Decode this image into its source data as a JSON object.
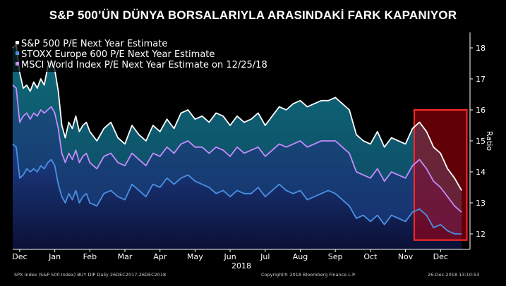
{
  "headline": "S&P 500’ÜN DÜNYA BORSALARIYLA ARASINDAKİ FARK KAPANIYOR",
  "footer": {
    "left": "SPX Index (S&P 500 Index) BUY DIP  Daily 26DEC2017-26DEC2018",
    "center": "Copyright® 2018 Bloomberg Finance L.P.",
    "right": "26-Dec-2018 13:10:53"
  },
  "colors": {
    "background": "#000000",
    "sp500": "#ffffff",
    "stoxx": "#4a90e2",
    "msci": "#c58cff",
    "highlight_fill": "#b3000f",
    "highlight_stroke": "#ff2a2a"
  },
  "chart_data": {
    "type": "line",
    "title": "",
    "xlabel": "2018",
    "ylabel": "Ratio",
    "ylim": [
      11.5,
      18.5
    ],
    "yticks": [
      12,
      13,
      14,
      15,
      16,
      17,
      18
    ],
    "xticks": [
      "Dec",
      "Jan",
      "Feb",
      "Mar",
      "Apr",
      "May",
      "Jun",
      "Jul",
      "Aug",
      "Sep",
      "Oct",
      "Nov",
      "Dec"
    ],
    "x_tick_positions": [
      -0.8,
      0.2,
      1.2,
      2.2,
      3.2,
      4.2,
      5.2,
      6.2,
      7.2,
      8.2,
      9.2,
      10.2,
      11.2
    ],
    "x_range": [
      -1.0,
      12.0
    ],
    "legend_position": "top-left",
    "series": [
      {
        "name": "S&P 500 P/E Next Year Estimate",
        "color": "#ffffff",
        "x": [
          -1.0,
          -0.9,
          -0.8,
          -0.7,
          -0.6,
          -0.5,
          -0.4,
          -0.3,
          -0.2,
          -0.1,
          0.0,
          0.1,
          0.2,
          0.3,
          0.4,
          0.5,
          0.6,
          0.7,
          0.8,
          0.9,
          1.0,
          1.1,
          1.2,
          1.4,
          1.6,
          1.8,
          2.0,
          2.2,
          2.4,
          2.6,
          2.8,
          3.0,
          3.2,
          3.4,
          3.6,
          3.8,
          4.0,
          4.2,
          4.4,
          4.6,
          4.8,
          5.0,
          5.2,
          5.4,
          5.6,
          5.8,
          6.0,
          6.2,
          6.4,
          6.6,
          6.8,
          7.0,
          7.2,
          7.4,
          7.6,
          7.8,
          8.0,
          8.2,
          8.4,
          8.6,
          8.8,
          9.0,
          9.2,
          9.4,
          9.6,
          9.8,
          10.0,
          10.2,
          10.4,
          10.6,
          10.8,
          11.0,
          11.2,
          11.4,
          11.6,
          11.8
        ],
        "values": [
          18.0,
          18.1,
          17.2,
          16.7,
          16.8,
          16.6,
          16.9,
          16.7,
          17.0,
          16.8,
          17.4,
          17.6,
          17.3,
          16.6,
          15.5,
          15.1,
          15.6,
          15.4,
          15.8,
          15.3,
          15.5,
          15.6,
          15.3,
          15.0,
          15.4,
          15.6,
          15.1,
          14.9,
          15.5,
          15.2,
          15.0,
          15.5,
          15.3,
          15.7,
          15.4,
          15.9,
          16.0,
          15.7,
          15.8,
          15.6,
          15.9,
          15.8,
          15.5,
          15.8,
          15.6,
          15.7,
          15.9,
          15.5,
          15.8,
          16.1,
          16.0,
          16.2,
          16.3,
          16.1,
          16.2,
          16.3,
          16.3,
          16.4,
          16.2,
          16.0,
          15.2,
          15.0,
          14.9,
          15.3,
          14.8,
          15.1,
          15.0,
          14.9,
          15.4,
          15.6,
          15.3,
          14.8,
          14.6,
          14.1,
          13.8,
          13.4
        ]
      },
      {
        "name": "STOXX Europe 600 P/E Next Year Estimate",
        "color": "#4a90e2",
        "x": [
          -1.0,
          -0.9,
          -0.8,
          -0.7,
          -0.6,
          -0.5,
          -0.4,
          -0.3,
          -0.2,
          -0.1,
          0.0,
          0.1,
          0.2,
          0.3,
          0.4,
          0.5,
          0.6,
          0.7,
          0.8,
          0.9,
          1.0,
          1.1,
          1.2,
          1.4,
          1.6,
          1.8,
          2.0,
          2.2,
          2.4,
          2.6,
          2.8,
          3.0,
          3.2,
          3.4,
          3.6,
          3.8,
          4.0,
          4.2,
          4.4,
          4.6,
          4.8,
          5.0,
          5.2,
          5.4,
          5.6,
          5.8,
          6.0,
          6.2,
          6.4,
          6.6,
          6.8,
          7.0,
          7.2,
          7.4,
          7.6,
          7.8,
          8.0,
          8.2,
          8.4,
          8.6,
          8.8,
          9.0,
          9.2,
          9.4,
          9.6,
          9.8,
          10.0,
          10.2,
          10.4,
          10.6,
          10.8,
          11.0,
          11.2,
          11.4,
          11.6,
          11.8
        ],
        "values": [
          14.9,
          14.8,
          13.8,
          13.9,
          14.1,
          14.0,
          14.1,
          14.0,
          14.2,
          14.1,
          14.3,
          14.4,
          14.2,
          13.6,
          13.2,
          13.0,
          13.3,
          13.1,
          13.4,
          13.0,
          13.2,
          13.3,
          13.0,
          12.9,
          13.3,
          13.4,
          13.2,
          13.1,
          13.6,
          13.4,
          13.2,
          13.6,
          13.5,
          13.8,
          13.6,
          13.8,
          13.9,
          13.7,
          13.6,
          13.5,
          13.3,
          13.4,
          13.2,
          13.4,
          13.3,
          13.3,
          13.5,
          13.2,
          13.4,
          13.6,
          13.4,
          13.3,
          13.4,
          13.1,
          13.2,
          13.3,
          13.4,
          13.3,
          13.1,
          12.9,
          12.5,
          12.6,
          12.4,
          12.6,
          12.3,
          12.6,
          12.5,
          12.4,
          12.7,
          12.8,
          12.6,
          12.2,
          12.3,
          12.1,
          12.0,
          12.0
        ]
      },
      {
        "name": "MSCI World Index P/E Next Year Estimate on 12/25/18",
        "color": "#c58cff",
        "x": [
          -1.0,
          -0.9,
          -0.8,
          -0.7,
          -0.6,
          -0.5,
          -0.4,
          -0.3,
          -0.2,
          -0.1,
          0.0,
          0.1,
          0.2,
          0.3,
          0.4,
          0.5,
          0.6,
          0.7,
          0.8,
          0.9,
          1.0,
          1.1,
          1.2,
          1.4,
          1.6,
          1.8,
          2.0,
          2.2,
          2.4,
          2.6,
          2.8,
          3.0,
          3.2,
          3.4,
          3.6,
          3.8,
          4.0,
          4.2,
          4.4,
          4.6,
          4.8,
          5.0,
          5.2,
          5.4,
          5.6,
          5.8,
          6.0,
          6.2,
          6.4,
          6.6,
          6.8,
          7.0,
          7.2,
          7.4,
          7.6,
          7.8,
          8.0,
          8.2,
          8.4,
          8.6,
          8.8,
          9.0,
          9.2,
          9.4,
          9.6,
          9.8,
          10.0,
          10.2,
          10.4,
          10.6,
          10.8,
          11.0,
          11.2,
          11.4,
          11.6,
          11.8
        ],
        "values": [
          16.8,
          16.7,
          15.6,
          15.8,
          15.9,
          15.7,
          15.9,
          15.8,
          16.0,
          15.9,
          16.0,
          16.1,
          15.9,
          15.4,
          14.6,
          14.3,
          14.6,
          14.4,
          14.7,
          14.3,
          14.5,
          14.6,
          14.3,
          14.1,
          14.5,
          14.6,
          14.3,
          14.2,
          14.6,
          14.4,
          14.2,
          14.6,
          14.5,
          14.8,
          14.6,
          14.9,
          15.0,
          14.8,
          14.8,
          14.6,
          14.8,
          14.7,
          14.5,
          14.8,
          14.6,
          14.7,
          14.8,
          14.5,
          14.7,
          14.9,
          14.8,
          14.9,
          15.0,
          14.8,
          14.9,
          15.0,
          15.0,
          15.0,
          14.8,
          14.6,
          14.0,
          13.9,
          13.8,
          14.1,
          13.7,
          14.0,
          13.9,
          13.8,
          14.2,
          14.4,
          14.1,
          13.7,
          13.5,
          13.2,
          12.9,
          12.7
        ]
      }
    ],
    "highlight_range": {
      "x": [
        10.45,
        11.95
      ],
      "y": [
        11.8,
        16.0
      ]
    }
  }
}
